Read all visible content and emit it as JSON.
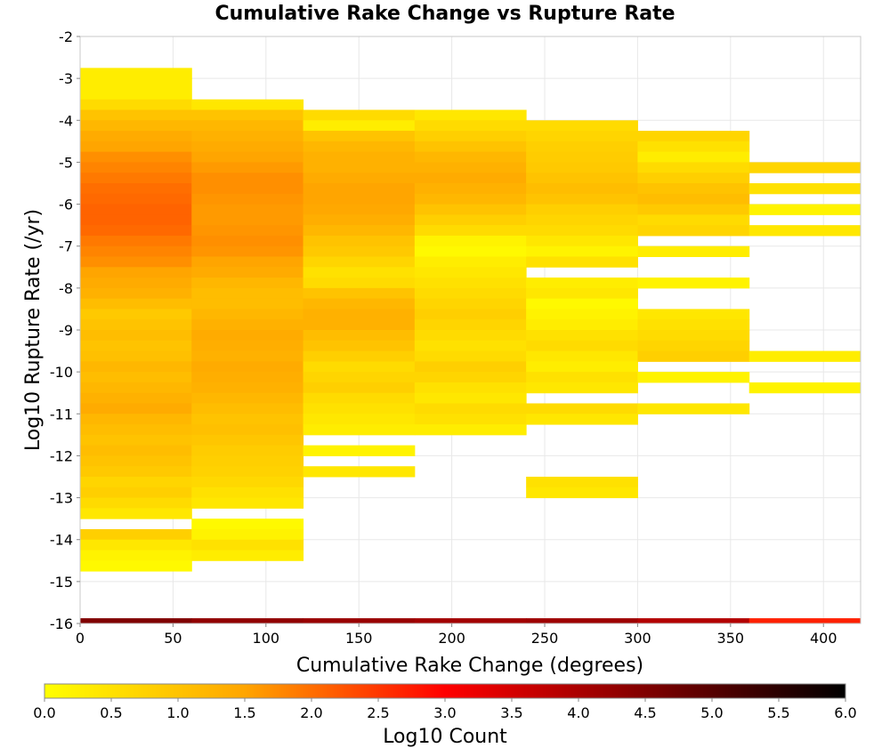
{
  "chart_data": {
    "type": "heatmap",
    "title": "Cumulative Rake Change vs Rupture Rate",
    "xlabel": "Cumulative Rake Change (degrees)",
    "ylabel": "Log10 Rupture Rate (/yr)",
    "xlim": [
      0,
      420
    ],
    "ylim": [
      -16,
      -2
    ],
    "x_ticks": [
      "0",
      "50",
      "100",
      "150",
      "200",
      "250",
      "300",
      "350",
      "400"
    ],
    "x_tick_values": [
      0,
      50,
      100,
      150,
      200,
      250,
      300,
      350,
      400
    ],
    "y_ticks": [
      "-2",
      "-3",
      "-4",
      "-5",
      "-6",
      "-7",
      "-8",
      "-9",
      "-10",
      "-11",
      "-12",
      "-13",
      "-14",
      "-15",
      "-16"
    ],
    "y_tick_values": [
      -2,
      -3,
      -4,
      -5,
      -6,
      -7,
      -8,
      -9,
      -10,
      -11,
      -12,
      -13,
      -14,
      -15,
      -16
    ],
    "bin_width_x": 60,
    "bin_height_y": 0.25,
    "grid": true,
    "colorbar": {
      "label": "Log10 Count",
      "range": [
        0,
        6
      ],
      "ticks": [
        "0.0",
        "0.5",
        "1.0",
        "1.5",
        "2.0",
        "2.5",
        "3.0",
        "3.5",
        "4.0",
        "4.5",
        "5.0",
        "5.5",
        "6.0"
      ],
      "tick_values": [
        0,
        0.5,
        1,
        1.5,
        2,
        2.5,
        3,
        3.5,
        4,
        4.5,
        5,
        5.5,
        6
      ],
      "placement": "bottom",
      "colors": [
        "#ffff00",
        "#ffa500",
        "#ff0000",
        "#800000",
        "#000000"
      ]
    },
    "columns": [
      {
        "x_start": 0,
        "y_top": -2.75,
        "values": [
          0.3,
          0.3,
          0.3,
          0.6,
          1.0,
          1.2,
          1.4,
          1.5,
          1.7,
          1.8,
          1.9,
          2.0,
          2.05,
          2.1,
          2.1,
          2.05,
          1.9,
          1.8,
          1.7,
          1.5,
          1.4,
          1.3,
          1.1,
          0.9,
          1.0,
          1.1,
          1.0,
          1.05,
          1.2,
          1.1,
          1.2,
          1.3,
          1.4,
          1.2,
          1.1,
          1.0,
          1.1,
          1.0,
          0.9,
          0.7,
          0.8,
          0.6,
          0.4,
          null,
          0.8,
          0.4,
          0.2,
          0.1
        ],
        "bottom_value": 4.5
      },
      {
        "x_start": 60,
        "y_top": -3.5,
        "values": [
          0.4,
          1.0,
          1.2,
          1.3,
          1.4,
          1.5,
          1.6,
          1.7,
          1.7,
          1.65,
          1.6,
          1.6,
          1.65,
          1.7,
          1.65,
          1.5,
          1.4,
          1.2,
          1.1,
          1.1,
          1.2,
          1.3,
          1.4,
          1.35,
          1.3,
          1.4,
          1.35,
          1.3,
          1.2,
          1.1,
          1.0,
          1.05,
          0.95,
          0.85,
          0.8,
          0.75,
          0.65,
          0.5,
          0.4,
          null,
          0.1,
          0.2,
          0.5,
          0.3
        ],
        "bottom_value": 4.3
      },
      {
        "x_start": 120,
        "y_top": -3.75,
        "values": [
          0.6,
          0.3,
          1.0,
          1.2,
          1.3,
          1.3,
          1.4,
          1.5,
          1.5,
          1.45,
          1.35,
          1.2,
          1.0,
          0.9,
          0.7,
          0.5,
          0.6,
          1.0,
          1.2,
          1.3,
          1.3,
          1.1,
          1.0,
          0.8,
          0.6,
          0.7,
          0.8,
          0.6,
          0.5,
          0.4,
          0.3,
          null,
          0.2,
          null,
          0.4
        ],
        "bottom_value": 4.2
      },
      {
        "x_start": 180,
        "y_top": -3.75,
        "values": [
          0.4,
          0.6,
          0.8,
          1.0,
          1.2,
          1.3,
          1.4,
          1.3,
          1.2,
          1.0,
          0.8,
          0.6,
          0.2,
          0.1,
          0.3,
          0.4,
          0.5,
          0.6,
          0.7,
          0.8,
          0.7,
          0.6,
          0.5,
          0.6,
          0.8,
          0.7,
          0.5,
          0.4,
          0.6,
          0.5,
          0.3
        ],
        "bottom_value": 4.1
      },
      {
        "x_start": 240,
        "y_top": -4.0,
        "values": [
          0.6,
          0.7,
          0.8,
          0.85,
          0.9,
          1.0,
          1.1,
          1.0,
          0.8,
          0.7,
          0.6,
          0.4,
          0.2,
          0.5,
          null,
          0.3,
          0.4,
          0.1,
          0.2,
          0.3,
          0.5,
          0.6,
          0.4,
          0.3,
          0.5,
          0.4,
          null,
          0.6,
          0.4,
          null,
          null,
          null,
          null,
          null,
          0.5,
          0.4
        ],
        "bottom_value": 4.15
      },
      {
        "x_start": 300,
        "y_top": -4.25,
        "values": [
          0.7,
          0.5,
          0.3,
          0.6,
          0.8,
          1.0,
          1.1,
          0.9,
          0.6,
          0.7,
          null,
          0.3,
          null,
          null,
          0.2,
          null,
          null,
          0.4,
          0.5,
          0.6,
          0.7,
          0.8,
          null,
          0.2,
          null,
          null,
          0.4
        ],
        "bottom_value": 3.9
      },
      {
        "x_start": 360,
        "y_top": -5.0,
        "values": [
          0.7,
          null,
          0.5,
          null,
          0.2,
          null,
          0.4,
          null,
          null,
          null,
          null,
          null,
          null,
          null,
          null,
          null,
          null,
          null,
          0.3,
          null,
          null,
          0.2
        ],
        "bottom_value": 2.7
      }
    ]
  }
}
